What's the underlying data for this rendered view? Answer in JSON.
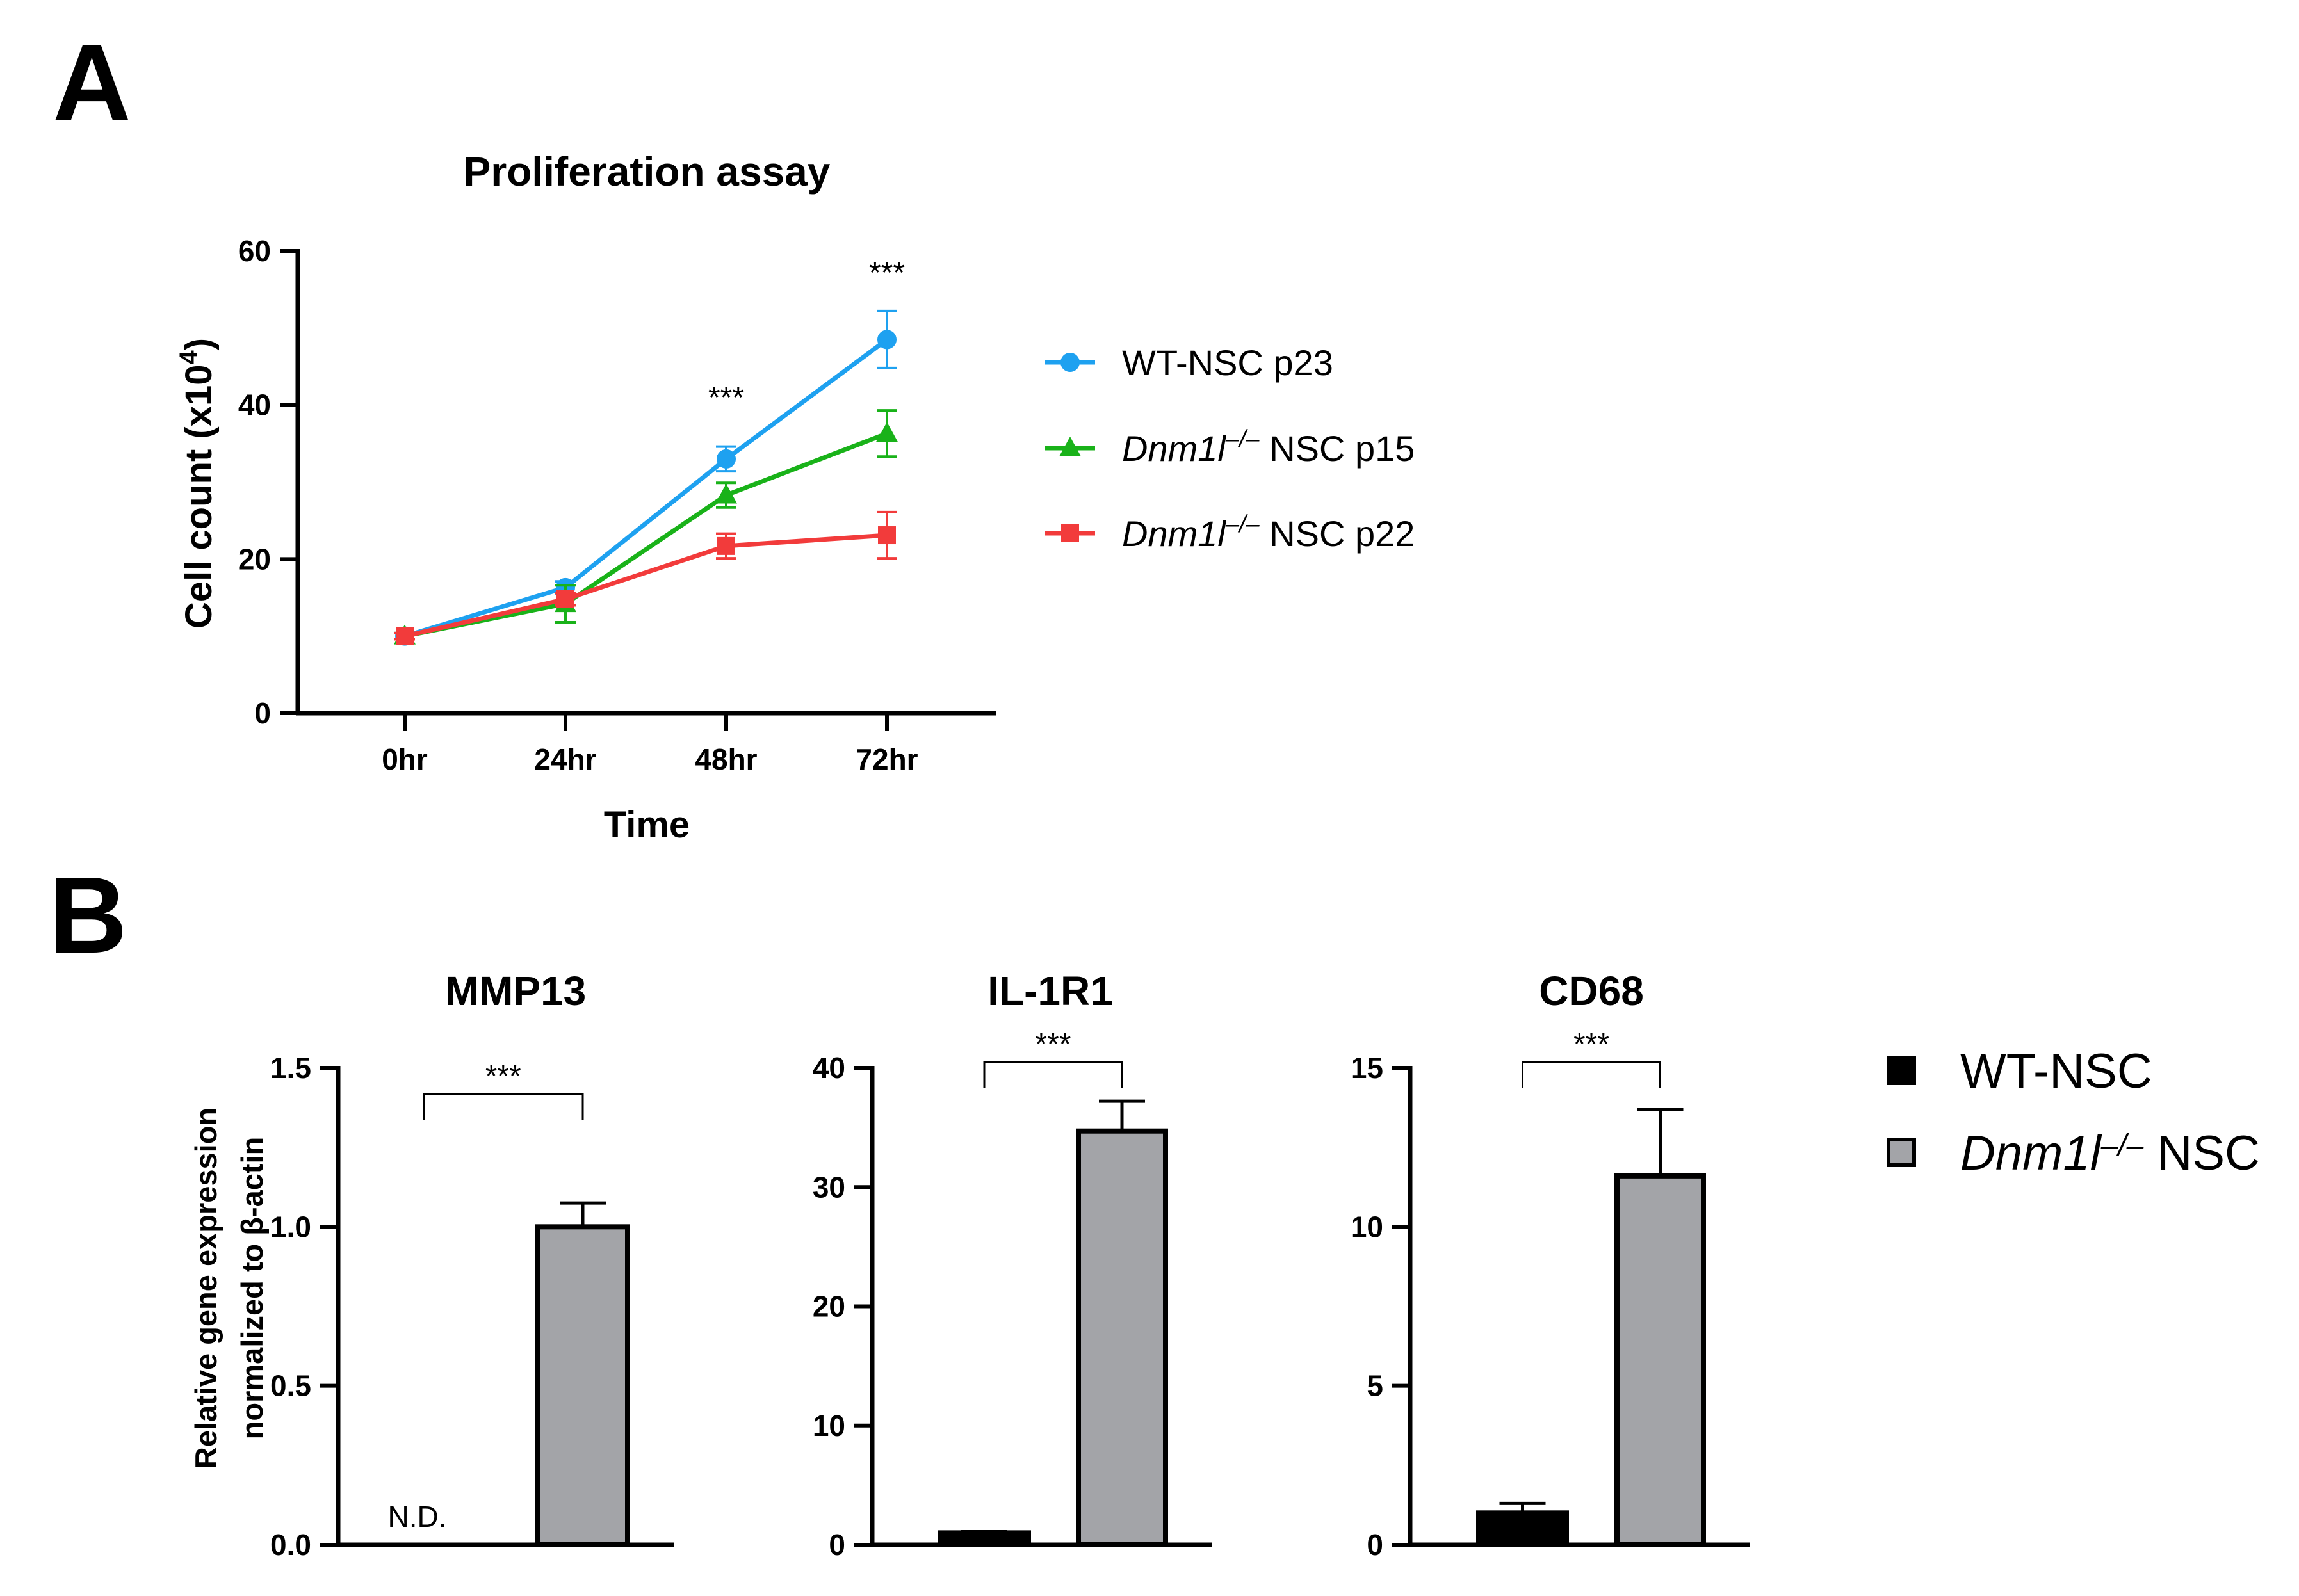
{
  "panels": {
    "a": "A",
    "b": "B"
  },
  "chart_data": [
    {
      "type": "line",
      "title": "Proliferation assay",
      "xlabel": "Time",
      "ylabel_main": "Cell count (x10",
      "ylabel_sup": "4",
      "ylabel_end": ")",
      "categories": [
        "0hr",
        "24hr",
        "48hr",
        "72hr"
      ],
      "ylim": [
        0,
        60
      ],
      "yticks": [
        0,
        20,
        40,
        60
      ],
      "series": [
        {
          "name": "WT-NSC p23",
          "name_italic": "",
          "name_sup": "",
          "name_rest": "WT-NSC p23",
          "color": "#1ea1f0",
          "marker": "circle",
          "values": [
            10,
            16.3,
            33,
            48.5
          ],
          "errors": [
            0.4,
            0.8,
            1.6,
            3.7
          ]
        },
        {
          "name": "Dnm1l-/- NSC p15",
          "name_italic": "Dnm1l",
          "name_sup": "–/–",
          "name_rest": " NSC p15",
          "color": "#19b219",
          "marker": "triangle",
          "values": [
            10,
            14.2,
            28.3,
            36.3
          ],
          "errors": [
            0.4,
            2.4,
            1.6,
            3.0
          ]
        },
        {
          "name": "Dnm1l-/- NSC p22",
          "name_italic": "Dnm1l",
          "name_sup": "–/–",
          "name_rest": " NSC p22",
          "color": "#f23b3b",
          "marker": "square",
          "values": [
            10,
            14.8,
            21.7,
            23.1
          ],
          "errors": [
            0.4,
            0.8,
            1.6,
            3.0
          ]
        }
      ],
      "annotations": [
        {
          "category": "48hr",
          "text": "***"
        },
        {
          "category": "72hr",
          "text": "***"
        }
      ]
    },
    {
      "type": "bar",
      "title": "MMP13",
      "ylabel_line1": "Relative gene expression",
      "ylabel_line2": "normalized to β-actin",
      "ylim": [
        0,
        1.5
      ],
      "yticks": [
        "0.0",
        "0.5",
        "1.0",
        "1.5"
      ],
      "series": [
        {
          "name": "WT-NSC",
          "value": 0,
          "error": 0,
          "label": "N.D."
        },
        {
          "name": "Dnm1l-/- NSC",
          "value": 1.0,
          "error": 0.075
        }
      ],
      "significance": "***"
    },
    {
      "type": "bar",
      "title": "IL-1R1",
      "ylim": [
        0,
        40
      ],
      "yticks": [
        "0",
        "10",
        "20",
        "30",
        "40"
      ],
      "series": [
        {
          "name": "WT-NSC",
          "value": 1.0,
          "error": 0.1
        },
        {
          "name": "Dnm1l-/- NSC",
          "value": 34.7,
          "error": 2.5
        }
      ],
      "significance": "***"
    },
    {
      "type": "bar",
      "title": "CD68",
      "ylim": [
        0,
        15
      ],
      "yticks": [
        "0",
        "5",
        "10",
        "15"
      ],
      "series": [
        {
          "name": "WT-NSC",
          "value": 1.0,
          "error": 0.3
        },
        {
          "name": "Dnm1l-/- NSC",
          "value": 11.6,
          "error": 2.1
        }
      ],
      "significance": "***"
    }
  ],
  "legend_b": {
    "items": [
      {
        "name_italic": "",
        "name_sup": "",
        "name_rest": "WT-NSC",
        "color": "#000000"
      },
      {
        "name_italic": "Dnm1l",
        "name_sup": "–/–",
        "name_rest": " NSC",
        "color": "#a3a4a8"
      }
    ]
  }
}
